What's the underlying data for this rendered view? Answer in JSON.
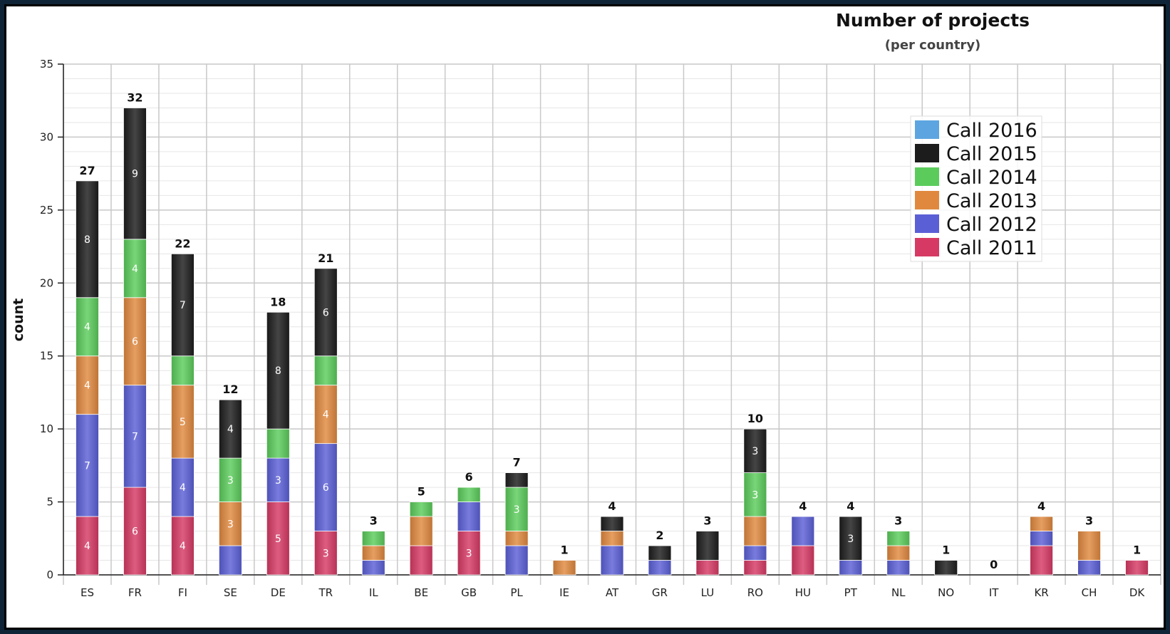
{
  "chart_data": {
    "type": "bar",
    "stacked": true,
    "title": "Number of projects",
    "subtitle": "(per country)",
    "xlabel": "",
    "ylabel": "count",
    "ylim": [
      0,
      35
    ],
    "yticks": [
      0,
      5,
      10,
      15,
      20,
      25,
      30,
      35
    ],
    "grid": true,
    "legend_position": "top-right",
    "categories": [
      "ES",
      "FR",
      "FI",
      "SE",
      "DE",
      "TR",
      "IL",
      "BE",
      "GB",
      "PL",
      "IE",
      "AT",
      "GR",
      "LU",
      "RO",
      "HU",
      "PT",
      "NL",
      "NO",
      "IT",
      "KR",
      "CH",
      "DK"
    ],
    "totals": [
      27,
      32,
      22,
      12,
      18,
      21,
      3,
      5,
      6,
      7,
      1,
      4,
      2,
      3,
      10,
      4,
      4,
      3,
      1,
      0,
      4,
      3,
      1
    ],
    "series": [
      {
        "name": "Call 2011",
        "color": "#d63a64",
        "values": [
          4,
          6,
          4,
          0,
          5,
          3,
          0,
          2,
          3,
          0,
          0,
          0,
          0,
          1,
          1,
          2,
          0,
          0,
          0,
          0,
          2,
          0,
          1
        ]
      },
      {
        "name": "Call 2012",
        "color": "#5b5fd6",
        "values": [
          7,
          7,
          4,
          2,
          3,
          6,
          1,
          0,
          2,
          2,
          0,
          2,
          1,
          0,
          1,
          2,
          1,
          1,
          0,
          0,
          1,
          1,
          0
        ]
      },
      {
        "name": "Call 2013",
        "color": "#e0893e",
        "values": [
          4,
          6,
          5,
          3,
          0,
          4,
          1,
          2,
          0,
          1,
          1,
          1,
          0,
          0,
          2,
          0,
          0,
          1,
          0,
          0,
          1,
          2,
          0
        ]
      },
      {
        "name": "Call 2014",
        "color": "#5bcc5b",
        "values": [
          4,
          4,
          2,
          3,
          2,
          2,
          1,
          1,
          1,
          3,
          0,
          0,
          0,
          0,
          3,
          0,
          0,
          1,
          0,
          0,
          0,
          0,
          0
        ]
      },
      {
        "name": "Call 2015",
        "color": "#1c1c1c",
        "values": [
          8,
          9,
          7,
          4,
          8,
          6,
          0,
          0,
          0,
          1,
          0,
          1,
          1,
          2,
          3,
          0,
          3,
          0,
          1,
          0,
          0,
          0,
          0
        ]
      },
      {
        "name": "Call 2016",
        "color": "#5da5e0",
        "values": [
          0,
          0,
          0,
          0,
          0,
          0,
          0,
          0,
          0,
          0,
          0,
          0,
          0,
          0,
          0,
          0,
          0,
          0,
          0,
          0,
          0,
          0,
          0
        ]
      }
    ]
  }
}
